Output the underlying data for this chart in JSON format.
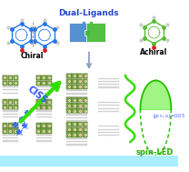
{
  "background_color": "#ffffff",
  "bottom_bar_color": "#aaeeff",
  "text_dual_ligands": "Dual-Ligands",
  "text_chiral": "Chiral",
  "text_achiral": "Achiral",
  "text_ciss": "CISS",
  "text_spin_led": "spin-LED",
  "chiral_color": "#2277ee",
  "achiral_color": "#55bb33",
  "puzzle_blue": "#4488cc",
  "puzzle_green": "#44bb33",
  "cell_color": "#7aaa44",
  "cell_border": "#556633",
  "cell_bg": "#c8d8a0",
  "cell_dot": "#ff9944",
  "gray_layers_color": "#aaaaaa",
  "ciss_arrow_color": "#33dd00",
  "ciss_text_color": "#3355ff",
  "spin_color": "#33dd00",
  "label_color": "#3355ff",
  "figsize": [
    2.08,
    1.89
  ],
  "dpi": 100
}
